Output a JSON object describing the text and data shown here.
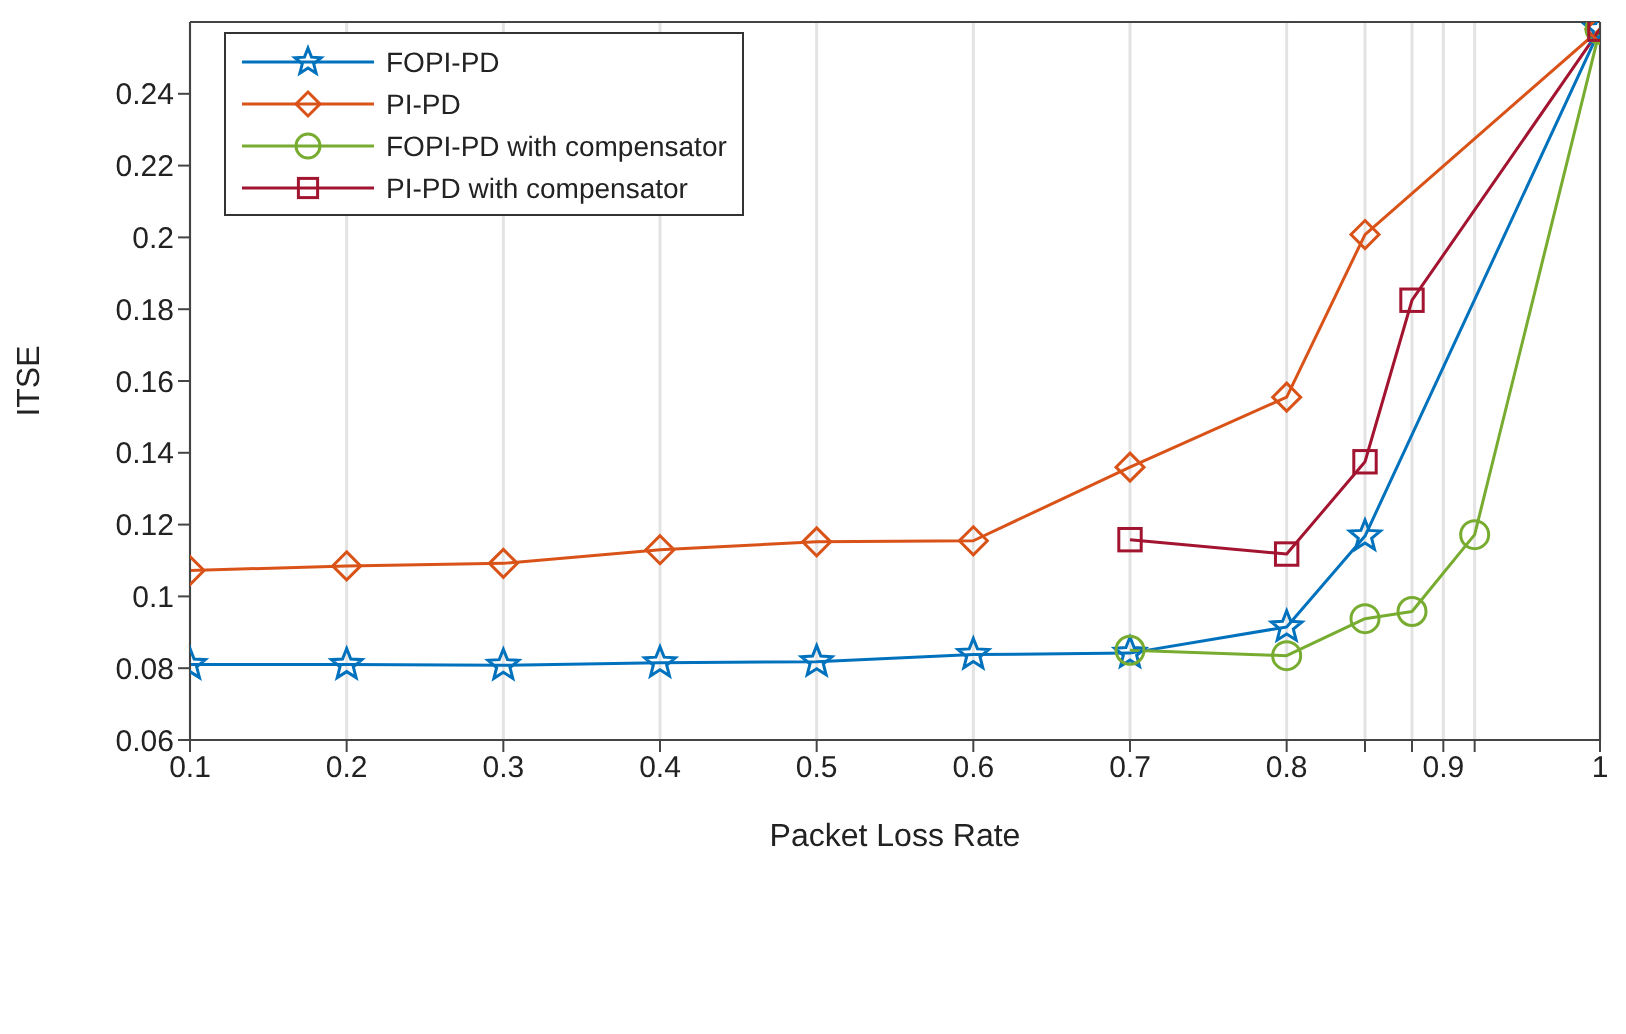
{
  "chart_data": {
    "type": "line",
    "xlabel": "Packet Loss Rate",
    "ylabel": "ITSE",
    "xlim": [
      0.1,
      1
    ],
    "xticks": [
      0.1,
      0.2,
      0.3,
      0.4,
      0.5,
      0.6,
      0.7,
      0.8,
      {
        "value": 0.85,
        "label": null
      },
      {
        "value": 0.88,
        "label": null
      },
      0.9,
      {
        "value": 0.92,
        "label": null
      },
      1
    ],
    "ylim": [
      0.06,
      0.26
    ],
    "yticks": [
      0.06,
      0.08,
      0.1,
      0.12,
      0.14,
      0.16,
      0.18,
      0.2,
      0.22,
      0.24
    ],
    "grid": "x",
    "legend": "top left",
    "line_style": "solid",
    "series": [
      {
        "name": "FOPI-PD",
        "color": "#0072bd",
        "marker": "star",
        "x": [
          0.1,
          0.2,
          0.3,
          0.4,
          0.5,
          0.6,
          0.7,
          0.8,
          0.85,
          1
        ],
        "values": [
          0.081,
          0.081,
          0.0808,
          0.0815,
          0.0818,
          0.0838,
          0.0842,
          0.0915,
          0.1168,
          0.258
        ]
      },
      {
        "name": "PI-PD",
        "color": "#d95319",
        "marker": "diamond",
        "x": [
          0.1,
          0.2,
          0.3,
          0.4,
          0.5,
          0.6,
          0.7,
          0.8,
          0.85,
          1
        ],
        "values": [
          0.1072,
          0.1085,
          0.1092,
          0.113,
          0.1152,
          0.1155,
          0.136,
          0.1555,
          0.2008,
          0.258
        ]
      },
      {
        "name": "FOPI-PD with compensator",
        "color": "#77ac30",
        "marker": "circle",
        "x": [
          0.7,
          0.8,
          0.85,
          0.88,
          0.92,
          1
        ],
        "values": [
          0.085,
          0.0835,
          0.0938,
          0.0958,
          0.1172,
          0.258
        ]
      },
      {
        "name": "PI-PD with compensator",
        "color": "#a2142f",
        "marker": "square",
        "x": [
          0.7,
          0.8,
          0.85,
          0.88,
          1
        ],
        "values": [
          0.1158,
          0.1118,
          0.1375,
          0.1825,
          0.258
        ]
      }
    ]
  }
}
